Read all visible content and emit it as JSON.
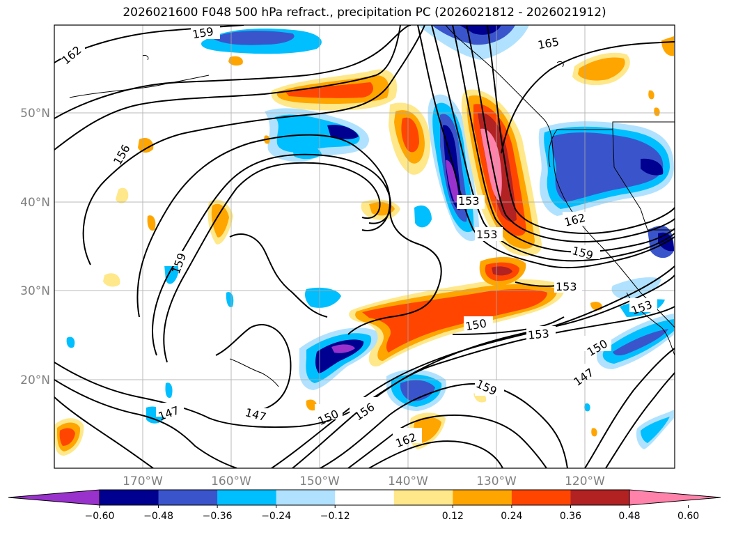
{
  "title": "2026021600 F048 500 hPa refract., precipitation PC (2026021812 - 2026021912)",
  "map": {
    "lon_ticks": [
      {
        "label": "170°W"
      },
      {
        "label": "160°W"
      },
      {
        "label": "150°W"
      },
      {
        "label": "140°W"
      },
      {
        "label": "130°W"
      },
      {
        "label": "120°W"
      }
    ],
    "lat_ticks": [
      {
        "label": "50°N"
      },
      {
        "label": "40°N"
      },
      {
        "label": "30°N"
      },
      {
        "label": "20°N"
      }
    ],
    "contour_labels": [
      "159",
      "162",
      "165",
      "156",
      "159",
      "153",
      "153",
      "162",
      "159",
      "153",
      "153",
      "150",
      "153",
      "150",
      "147",
      "147",
      "147",
      "150",
      "156",
      "162",
      "159"
    ],
    "colors": {
      "neg_060": "#9932cc",
      "neg_048": "#000090",
      "neg_036": "#3a55cc",
      "neg_024": "#00bfff",
      "neg_012": "#b0e2ff",
      "zero": "#ffffff",
      "pos_012": "#ffe88a",
      "pos_024": "#ffa500",
      "pos_036": "#ff4500",
      "pos_048": "#b22222",
      "pos_060": "#ff82ab"
    }
  },
  "colorbar": {
    "ticks": [
      "−0.60",
      "−0.48",
      "−0.36",
      "−0.24",
      "−0.12",
      "0.12",
      "0.24",
      "0.36",
      "0.48",
      "0.60"
    ],
    "segments": [
      "#9932cc",
      "#000090",
      "#3a55cc",
      "#00bfff",
      "#b0e2ff",
      "#ffffff",
      "#ffe88a",
      "#ffa500",
      "#ff4500",
      "#b22222",
      "#ff82ab"
    ]
  }
}
